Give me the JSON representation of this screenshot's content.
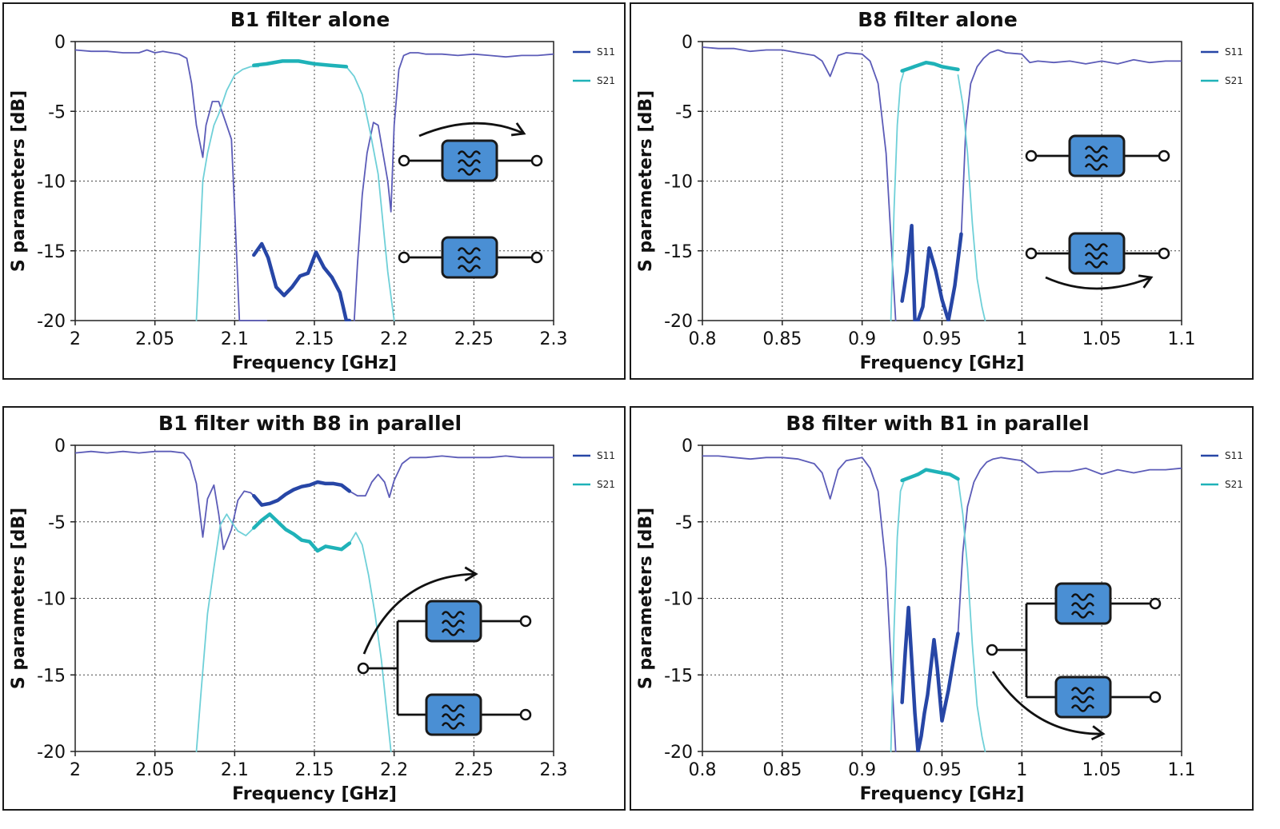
{
  "colors": {
    "s11": "#5c5cb8",
    "s11_bold": "#2746a6",
    "s21": "#6fd0d8",
    "s21_bold": "#1fb2b8",
    "filter_fill": "#4a8fd4",
    "filter_stroke": "#1a1a1a"
  },
  "chart_data": [
    {
      "type": "line",
      "title": "B1 filter alone",
      "xlabel": "Frequency [GHz]",
      "ylabel": "S parameters [dB]",
      "xlim": [
        2,
        2.3
      ],
      "ylim": [
        -20,
        0
      ],
      "xticks": [
        "2",
        "2.05",
        "2.1",
        "2.15",
        "2.2",
        "2.25",
        "2.3"
      ],
      "yticks": [
        "0",
        "-5",
        "-10",
        "-15",
        "-20"
      ],
      "grid": true,
      "legend": "top-right",
      "inset": "single",
      "series": [
        {
          "name": "S11",
          "color": "s11",
          "x": [
            2.0,
            2.01,
            2.02,
            2.03,
            2.04,
            2.045,
            2.05,
            2.055,
            2.06,
            2.065,
            2.07,
            2.073,
            2.076,
            2.08,
            2.082,
            2.086,
            2.09,
            2.092,
            2.095,
            2.098,
            2.1,
            2.103,
            2.106,
            2.108,
            2.11,
            2.112,
            2.114,
            2.116,
            2.118,
            2.12
          ],
          "y": [
            -0.6,
            -0.7,
            -0.7,
            -0.8,
            -0.8,
            -0.6,
            -0.8,
            -0.7,
            -0.8,
            -0.9,
            -1.2,
            -3,
            -6,
            -8.3,
            -6,
            -4.3,
            -4.3,
            -5,
            -6,
            -7,
            -12,
            -20,
            -20,
            -20,
            -20,
            -20,
            -20,
            -20,
            -20,
            -20
          ]
        },
        {
          "name": "S11",
          "color": "s11",
          "x": [
            2.175,
            2.177,
            2.18,
            2.183,
            2.187,
            2.19,
            2.193,
            2.196,
            2.198,
            2.2,
            2.203,
            2.206,
            2.21,
            2.215,
            2.22,
            2.23,
            2.24,
            2.25,
            2.26,
            2.27,
            2.28,
            2.29,
            2.3
          ],
          "y": [
            -20,
            -16,
            -11,
            -8,
            -5.8,
            -6,
            -8,
            -10,
            -12.2,
            -6,
            -2,
            -1.0,
            -0.8,
            -0.8,
            -0.9,
            -0.9,
            -1.0,
            -0.9,
            -1.0,
            -1.1,
            -1.0,
            -1.0,
            -0.9
          ]
        },
        {
          "name": "S11 passband",
          "color": "s11_bold",
          "bold": true,
          "x": [
            2.112,
            2.117,
            2.121,
            2.126,
            2.131,
            2.136,
            2.141,
            2.146,
            2.151,
            2.156,
            2.161,
            2.166,
            2.17,
            2.172
          ],
          "y": [
            -15.3,
            -14.5,
            -15.5,
            -17.6,
            -18.2,
            -17.6,
            -16.8,
            -16.6,
            -15.1,
            -16.2,
            -16.9,
            -18,
            -20,
            -20
          ]
        },
        {
          "name": "S21",
          "color": "s21",
          "x": [
            2.076,
            2.078,
            2.08,
            2.083,
            2.087,
            2.09,
            2.095,
            2.1,
            2.105,
            2.11,
            2.115
          ],
          "y": [
            -20,
            -15,
            -10,
            -8,
            -6,
            -5.2,
            -3.5,
            -2.4,
            -2.0,
            -1.8,
            -1.8
          ]
        },
        {
          "name": "S21",
          "color": "s21",
          "x": [
            2.17,
            2.175,
            2.18,
            2.185,
            2.19,
            2.193,
            2.196,
            2.2
          ],
          "y": [
            -1.8,
            -2.5,
            -3.8,
            -6.5,
            -9.5,
            -13,
            -16.5,
            -20
          ]
        },
        {
          "name": "S21 passband",
          "color": "s21_bold",
          "bold": true,
          "x": [
            2.112,
            2.12,
            2.13,
            2.14,
            2.15,
            2.16,
            2.17
          ],
          "y": [
            -1.7,
            -1.6,
            -1.4,
            -1.4,
            -1.6,
            -1.7,
            -1.8
          ]
        }
      ]
    },
    {
      "type": "line",
      "title": "B8 filter alone",
      "xlabel": "Frequency [GHz]",
      "ylabel": "S parameters [dB]",
      "xlim": [
        0.8,
        1.1
      ],
      "ylim": [
        -20,
        0
      ],
      "xticks": [
        "0.8",
        "0.85",
        "0.9",
        "0.95",
        "1",
        "1.05",
        "1.1"
      ],
      "yticks": [
        "0",
        "-5",
        "-10",
        "-15",
        "-20"
      ],
      "grid": true,
      "legend": "top-right",
      "inset": "single",
      "series": [
        {
          "name": "S11",
          "color": "s11",
          "x": [
            0.8,
            0.81,
            0.82,
            0.83,
            0.84,
            0.85,
            0.86,
            0.87,
            0.875,
            0.88,
            0.885,
            0.89,
            0.9,
            0.905,
            0.91,
            0.915,
            0.918,
            0.921
          ],
          "y": [
            -0.4,
            -0.5,
            -0.5,
            -0.7,
            -0.6,
            -0.6,
            -0.8,
            -1.0,
            -1.4,
            -2.5,
            -1.0,
            -0.8,
            -0.9,
            -1.4,
            -3,
            -8,
            -14,
            -20
          ]
        },
        {
          "name": "S11",
          "color": "s11",
          "x": [
            0.962,
            0.965,
            0.968,
            0.972,
            0.976,
            0.98,
            0.985,
            0.99,
            1.0,
            1.005,
            1.01,
            1.02,
            1.03,
            1.04,
            1.05,
            1.06,
            1.07,
            1.08,
            1.09,
            1.1
          ],
          "y": [
            -14,
            -6,
            -3,
            -1.8,
            -1.2,
            -0.8,
            -0.6,
            -0.8,
            -0.9,
            -1.5,
            -1.4,
            -1.5,
            -1.4,
            -1.6,
            -1.4,
            -1.6,
            -1.3,
            -1.5,
            -1.4,
            -1.4
          ]
        },
        {
          "name": "S11 passband",
          "color": "s11_bold",
          "bold": true,
          "x": [
            0.925,
            0.928,
            0.931,
            0.933,
            0.935,
            0.938,
            0.942,
            0.946,
            0.95,
            0.954,
            0.958,
            0.962
          ],
          "y": [
            -18.6,
            -16.5,
            -13.2,
            -20,
            -20,
            -19,
            -14.8,
            -16.4,
            -18.5,
            -20,
            -17.5,
            -13.8
          ]
        },
        {
          "name": "S21",
          "color": "s21",
          "x": [
            0.918,
            0.92,
            0.922,
            0.924,
            0.926
          ],
          "y": [
            -20,
            -12,
            -6,
            -3,
            -2.2
          ]
        },
        {
          "name": "S21",
          "color": "s21",
          "x": [
            0.96,
            0.963,
            0.966,
            0.969,
            0.972,
            0.975,
            0.977
          ],
          "y": [
            -2.4,
            -4.5,
            -8,
            -13,
            -17,
            -19,
            -20
          ]
        },
        {
          "name": "S21 passband",
          "color": "s21_bold",
          "bold": true,
          "x": [
            0.925,
            0.93,
            0.935,
            0.94,
            0.945,
            0.95,
            0.955,
            0.96
          ],
          "y": [
            -2.1,
            -1.9,
            -1.7,
            -1.5,
            -1.6,
            -1.8,
            -1.9,
            -2.0
          ]
        }
      ]
    },
    {
      "type": "line",
      "title": "B1 filter with B8 in parallel",
      "xlabel": "Frequency [GHz]",
      "ylabel": "S parameters [dB]",
      "xlim": [
        2,
        2.3
      ],
      "ylim": [
        -20,
        0
      ],
      "xticks": [
        "2",
        "2.05",
        "2.1",
        "2.15",
        "2.2",
        "2.25",
        "2.3"
      ],
      "yticks": [
        "0",
        "-5",
        "-10",
        "-15",
        "-20"
      ],
      "grid": true,
      "legend": "top-right",
      "inset": "parallel-left",
      "series": [
        {
          "name": "S11",
          "color": "s11",
          "x": [
            2.0,
            2.01,
            2.02,
            2.03,
            2.04,
            2.05,
            2.06,
            2.068,
            2.072,
            2.076,
            2.08,
            2.083,
            2.087,
            2.09,
            2.093,
            2.098,
            2.102,
            2.106,
            2.11,
            2.112
          ],
          "y": [
            -0.5,
            -0.4,
            -0.5,
            -0.4,
            -0.5,
            -0.4,
            -0.4,
            -0.5,
            -1.0,
            -2.5,
            -6,
            -3.5,
            -2.6,
            -4.5,
            -6.8,
            -5.5,
            -3.6,
            -3.0,
            -3.1,
            -3.3
          ]
        },
        {
          "name": "S11",
          "color": "s11",
          "x": [
            2.172,
            2.177,
            2.182,
            2.186,
            2.19,
            2.194,
            2.197,
            2.2,
            2.205,
            2.21,
            2.22,
            2.23,
            2.24,
            2.25,
            2.26,
            2.27,
            2.28,
            2.29,
            2.3
          ],
          "y": [
            -3.0,
            -3.3,
            -3.3,
            -2.4,
            -1.9,
            -2.4,
            -3.4,
            -2.3,
            -1.2,
            -0.8,
            -0.8,
            -0.7,
            -0.8,
            -0.8,
            -0.8,
            -0.7,
            -0.8,
            -0.8,
            -0.8
          ]
        },
        {
          "name": "S11 passband",
          "color": "s11_bold",
          "bold": true,
          "x": [
            2.112,
            2.117,
            2.122,
            2.127,
            2.132,
            2.137,
            2.142,
            2.147,
            2.152,
            2.157,
            2.162,
            2.167,
            2.172
          ],
          "y": [
            -3.3,
            -3.9,
            -3.8,
            -3.6,
            -3.2,
            -2.9,
            -2.7,
            -2.6,
            -2.4,
            -2.5,
            -2.5,
            -2.6,
            -3.0
          ]
        },
        {
          "name": "S21",
          "color": "s21",
          "x": [
            2.076,
            2.079,
            2.083,
            2.087,
            2.091,
            2.095,
            2.098,
            2.102,
            2.107,
            2.112
          ],
          "y": [
            -20,
            -16,
            -11,
            -8,
            -5.2,
            -4.5,
            -5,
            -5.6,
            -5.9,
            -5.4
          ]
        },
        {
          "name": "S21",
          "color": "s21",
          "x": [
            2.172,
            2.176,
            2.18,
            2.184,
            2.188,
            2.192,
            2.195,
            2.198
          ],
          "y": [
            -6.4,
            -5.7,
            -6.5,
            -8.5,
            -11,
            -14,
            -17,
            -20
          ]
        },
        {
          "name": "S21 passband",
          "color": "s21_bold",
          "bold": true,
          "x": [
            2.112,
            2.117,
            2.122,
            2.127,
            2.132,
            2.137,
            2.142,
            2.147,
            2.152,
            2.157,
            2.162,
            2.167,
            2.172
          ],
          "y": [
            -5.4,
            -4.9,
            -4.5,
            -5.0,
            -5.5,
            -5.8,
            -6.2,
            -6.3,
            -6.9,
            -6.6,
            -6.7,
            -6.8,
            -6.4
          ]
        }
      ]
    },
    {
      "type": "line",
      "title": "B8 filter with B1 in parallel",
      "xlabel": "Frequency [GHz]",
      "ylabel": "S parameters [dB]",
      "xlim": [
        0.8,
        1.1
      ],
      "ylim": [
        -20,
        0
      ],
      "xticks": [
        "0.8",
        "0.85",
        "0.9",
        "0.95",
        "1",
        "1.05",
        "1.1"
      ],
      "yticks": [
        "0",
        "-5",
        "-10",
        "-15",
        "-20"
      ],
      "grid": true,
      "legend": "top-right",
      "inset": "parallel-right",
      "series": [
        {
          "name": "S11",
          "color": "s11",
          "x": [
            0.8,
            0.81,
            0.82,
            0.83,
            0.84,
            0.85,
            0.86,
            0.87,
            0.875,
            0.88,
            0.885,
            0.89,
            0.9,
            0.905,
            0.91,
            0.915,
            0.918,
            0.921
          ],
          "y": [
            -0.7,
            -0.7,
            -0.8,
            -0.9,
            -0.8,
            -0.8,
            -0.9,
            -1.2,
            -1.8,
            -3.5,
            -1.6,
            -1.0,
            -0.8,
            -1.5,
            -3,
            -8,
            -14,
            -20
          ]
        },
        {
          "name": "S11",
          "color": "s11",
          "x": [
            0.96,
            0.963,
            0.966,
            0.97,
            0.974,
            0.978,
            0.982,
            0.987,
            0.993,
            1.0,
            1.005,
            1.01,
            1.02,
            1.03,
            1.04,
            1.05,
            1.06,
            1.07,
            1.08,
            1.09,
            1.1
          ],
          "y": [
            -12.3,
            -7,
            -4,
            -2.4,
            -1.6,
            -1.1,
            -0.9,
            -0.8,
            -0.9,
            -1.0,
            -1.4,
            -1.8,
            -1.7,
            -1.7,
            -1.5,
            -1.9,
            -1.6,
            -1.8,
            -1.6,
            -1.6,
            -1.5
          ]
        },
        {
          "name": "S11 passband",
          "color": "s11_bold",
          "bold": true,
          "x": [
            0.925,
            0.927,
            0.929,
            0.931,
            0.933,
            0.935,
            0.937,
            0.939,
            0.941,
            0.945,
            0.947,
            0.95,
            0.954,
            0.958,
            0.96
          ],
          "y": [
            -16.8,
            -13.5,
            -10.6,
            -14,
            -17.5,
            -20,
            -19,
            -17.5,
            -16.3,
            -12.7,
            -14.5,
            -18,
            -16,
            -13.5,
            -12.3
          ]
        },
        {
          "name": "S21",
          "color": "s21",
          "x": [
            0.918,
            0.92,
            0.922,
            0.924,
            0.926
          ],
          "y": [
            -20,
            -12,
            -6,
            -3,
            -2.4
          ]
        },
        {
          "name": "S21",
          "color": "s21",
          "x": [
            0.96,
            0.963,
            0.966,
            0.969,
            0.972,
            0.975,
            0.977
          ],
          "y": [
            -2.2,
            -4.5,
            -8,
            -13,
            -17,
            -19,
            -20
          ]
        },
        {
          "name": "S21 passband",
          "color": "s21_bold",
          "bold": true,
          "x": [
            0.925,
            0.93,
            0.935,
            0.94,
            0.945,
            0.95,
            0.955,
            0.96
          ],
          "y": [
            -2.3,
            -2.1,
            -1.9,
            -1.6,
            -1.7,
            -1.8,
            -1.9,
            -2.2
          ]
        }
      ]
    }
  ],
  "legend": {
    "s11_label": "S11",
    "s21_label": "S21"
  }
}
